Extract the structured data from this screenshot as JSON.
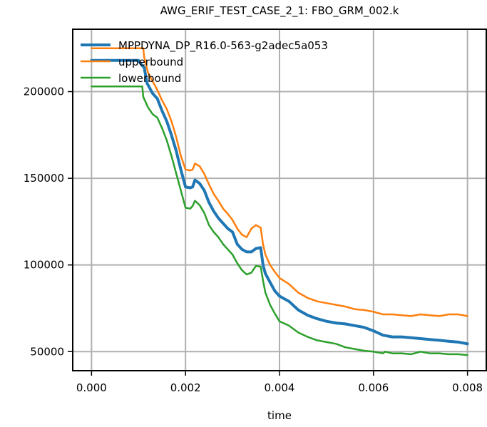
{
  "chart_data": {
    "type": "line",
    "title": "AWG_ERIF_TEST_CASE_2_1: FBO_GRM_002.k",
    "xlabel": "time",
    "ylabel": "",
    "xlim": [
      -0.0004,
      0.0084
    ],
    "ylim": [
      39000,
      236000
    ],
    "grid": true,
    "legend_position": "top-left",
    "x_ticks": [
      0.0,
      0.002,
      0.004,
      0.006,
      0.008
    ],
    "x_tick_labels": [
      "0.000",
      "0.002",
      "0.004",
      "0.006",
      "0.008"
    ],
    "y_ticks": [
      50000,
      100000,
      150000,
      200000
    ],
    "y_tick_labels": [
      "50000",
      "100000",
      "150000",
      "200000"
    ],
    "series": [
      {
        "name": "MPPDYNA_DP_R16.0-563-g2adec5a053",
        "color": "#1f77b4",
        "width": 4,
        "points": [
          [
            0.0,
            218000
          ],
          [
            0.0005,
            218000
          ],
          [
            0.001,
            218000
          ],
          [
            0.00108,
            215000
          ],
          [
            0.00112,
            214000
          ],
          [
            0.00118,
            205000
          ],
          [
            0.0013,
            199000
          ],
          [
            0.0014,
            196000
          ],
          [
            0.0015,
            189000
          ],
          [
            0.0016,
            183000
          ],
          [
            0.0017,
            175000
          ],
          [
            0.0018,
            166000
          ],
          [
            0.0019,
            155000
          ],
          [
            0.002,
            145000
          ],
          [
            0.0021,
            144500
          ],
          [
            0.00215,
            145000
          ],
          [
            0.0022,
            149000
          ],
          [
            0.0023,
            147000
          ],
          [
            0.0024,
            143000
          ],
          [
            0.0025,
            136000
          ],
          [
            0.0026,
            131000
          ],
          [
            0.0027,
            127000
          ],
          [
            0.0028,
            124000
          ],
          [
            0.0029,
            121000
          ],
          [
            0.003,
            119000
          ],
          [
            0.0031,
            112000
          ],
          [
            0.0032,
            109000
          ],
          [
            0.0033,
            107500
          ],
          [
            0.0034,
            107500
          ],
          [
            0.0035,
            109500
          ],
          [
            0.0036,
            110000
          ],
          [
            0.00365,
            100000
          ],
          [
            0.0037,
            95000
          ],
          [
            0.0038,
            90000
          ],
          [
            0.0039,
            85000
          ],
          [
            0.004,
            82000
          ],
          [
            0.0042,
            79000
          ],
          [
            0.0044,
            74000
          ],
          [
            0.0046,
            71000
          ],
          [
            0.0048,
            69000
          ],
          [
            0.005,
            67500
          ],
          [
            0.0052,
            66500
          ],
          [
            0.0054,
            66000
          ],
          [
            0.0056,
            65000
          ],
          [
            0.0058,
            64000
          ],
          [
            0.006,
            62000
          ],
          [
            0.0062,
            59500
          ],
          [
            0.0064,
            58500
          ],
          [
            0.0066,
            58500
          ],
          [
            0.0068,
            58000
          ],
          [
            0.007,
            57500
          ],
          [
            0.0072,
            57000
          ],
          [
            0.0074,
            56500
          ],
          [
            0.0076,
            56000
          ],
          [
            0.0078,
            55500
          ],
          [
            0.008,
            54500
          ]
        ]
      },
      {
        "name": "upperbound",
        "color": "#ff7f0e",
        "width": 2.5,
        "points": [
          [
            0.0,
            225000
          ],
          [
            0.0005,
            225000
          ],
          [
            0.001,
            225000
          ],
          [
            0.0011,
            225000
          ],
          [
            0.00112,
            220000
          ],
          [
            0.0012,
            211000
          ],
          [
            0.0013,
            206000
          ],
          [
            0.0014,
            201000
          ],
          [
            0.0015,
            195000
          ],
          [
            0.0016,
            190000
          ],
          [
            0.0017,
            183000
          ],
          [
            0.0018,
            174000
          ],
          [
            0.0019,
            163000
          ],
          [
            0.002,
            155000
          ],
          [
            0.0021,
            154500
          ],
          [
            0.00215,
            155000
          ],
          [
            0.0022,
            158500
          ],
          [
            0.0023,
            157000
          ],
          [
            0.0024,
            152500
          ],
          [
            0.0025,
            146500
          ],
          [
            0.0026,
            141000
          ],
          [
            0.0027,
            137000
          ],
          [
            0.0028,
            132500
          ],
          [
            0.0029,
            129500
          ],
          [
            0.003,
            126000
          ],
          [
            0.0031,
            121000
          ],
          [
            0.0032,
            117500
          ],
          [
            0.0033,
            116000
          ],
          [
            0.0034,
            121000
          ],
          [
            0.0035,
            123000
          ],
          [
            0.0036,
            121500
          ],
          [
            0.00365,
            112000
          ],
          [
            0.0037,
            106000
          ],
          [
            0.0038,
            100000
          ],
          [
            0.0039,
            96000
          ],
          [
            0.004,
            92500
          ],
          [
            0.0042,
            89000
          ],
          [
            0.0044,
            84000
          ],
          [
            0.0046,
            81000
          ],
          [
            0.0048,
            79000
          ],
          [
            0.005,
            78000
          ],
          [
            0.0052,
            77000
          ],
          [
            0.0054,
            76000
          ],
          [
            0.0056,
            74500
          ],
          [
            0.0058,
            74000
          ],
          [
            0.006,
            73000
          ],
          [
            0.0062,
            71500
          ],
          [
            0.0064,
            71500
          ],
          [
            0.0066,
            71000
          ],
          [
            0.0068,
            70500
          ],
          [
            0.007,
            71500
          ],
          [
            0.0072,
            71000
          ],
          [
            0.0074,
            70500
          ],
          [
            0.0076,
            71500
          ],
          [
            0.0078,
            71500
          ],
          [
            0.008,
            70500
          ]
        ]
      },
      {
        "name": "lowerbound",
        "color": "#2ca02c",
        "width": 2.5,
        "points": [
          [
            0.0,
            203000
          ],
          [
            0.0005,
            203000
          ],
          [
            0.001,
            203000
          ],
          [
            0.00108,
            203000
          ],
          [
            0.0011,
            197000
          ],
          [
            0.0012,
            191000
          ],
          [
            0.0013,
            187000
          ],
          [
            0.0014,
            185000
          ],
          [
            0.0015,
            179000
          ],
          [
            0.0016,
            172000
          ],
          [
            0.0017,
            163000
          ],
          [
            0.0018,
            153000
          ],
          [
            0.0019,
            143000
          ],
          [
            0.002,
            133000
          ],
          [
            0.0021,
            132500
          ],
          [
            0.00215,
            134000
          ],
          [
            0.0022,
            137000
          ],
          [
            0.0023,
            134500
          ],
          [
            0.0024,
            130000
          ],
          [
            0.0025,
            123000
          ],
          [
            0.0026,
            119000
          ],
          [
            0.0027,
            116000
          ],
          [
            0.0028,
            112000
          ],
          [
            0.0029,
            109000
          ],
          [
            0.003,
            106000
          ],
          [
            0.0031,
            101000
          ],
          [
            0.0032,
            97000
          ],
          [
            0.0033,
            94500
          ],
          [
            0.0034,
            95500
          ],
          [
            0.0035,
            99500
          ],
          [
            0.0036,
            99000
          ],
          [
            0.00365,
            91000
          ],
          [
            0.0037,
            84000
          ],
          [
            0.0038,
            77000
          ],
          [
            0.0039,
            72000
          ],
          [
            0.004,
            67500
          ],
          [
            0.0042,
            65000
          ],
          [
            0.0044,
            61000
          ],
          [
            0.0046,
            58500
          ],
          [
            0.0048,
            56500
          ],
          [
            0.005,
            55500
          ],
          [
            0.0052,
            54500
          ],
          [
            0.0054,
            52500
          ],
          [
            0.0056,
            51500
          ],
          [
            0.0058,
            50500
          ],
          [
            0.006,
            50000
          ],
          [
            0.0062,
            49000
          ],
          [
            0.00625,
            50000
          ],
          [
            0.0064,
            49000
          ],
          [
            0.0066,
            49000
          ],
          [
            0.0068,
            48500
          ],
          [
            0.007,
            50000
          ],
          [
            0.0072,
            49000
          ],
          [
            0.0074,
            49000
          ],
          [
            0.0076,
            48500
          ],
          [
            0.0078,
            48500
          ],
          [
            0.008,
            48000
          ]
        ]
      }
    ]
  }
}
